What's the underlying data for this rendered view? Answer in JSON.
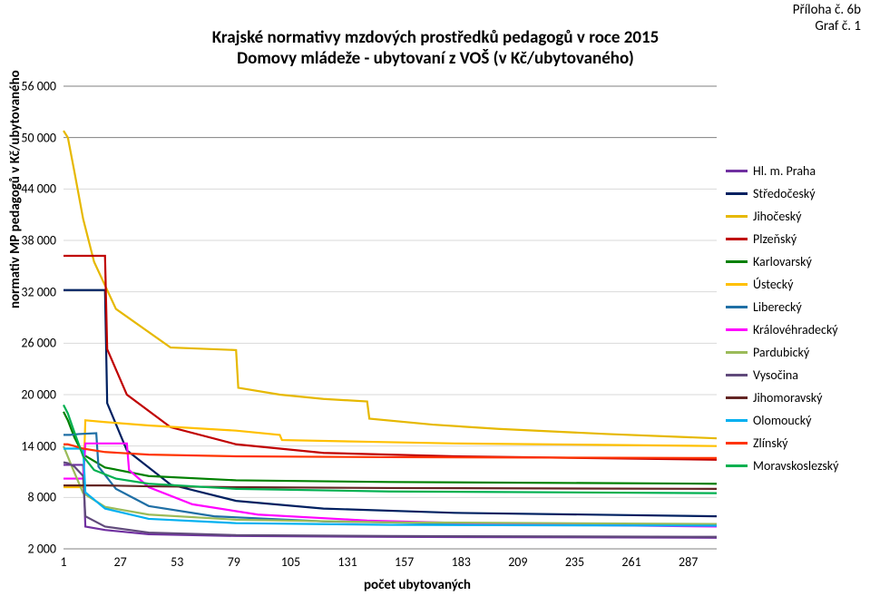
{
  "header": {
    "line1": "Příloha č. 6b",
    "line2": "Graf č. 1"
  },
  "title": {
    "line1": "Krajské normativy mzdových prostředků pedagogů v roce 2015",
    "line2": "Domovy mládeže - ubytovaní z VOŠ (v Kč/ubytovaného)"
  },
  "axes": {
    "ylabel": "normativ MP pedagogů v Kč/ubytovaného",
    "xlabel": "počet ubytovaných",
    "ymin": 2000,
    "ymax": 56000,
    "yticks": [
      56000,
      50000,
      44000,
      38000,
      32000,
      26000,
      20000,
      14000,
      8000,
      2000
    ],
    "ytick_labels": [
      "56 000",
      "50 000",
      "44 000",
      "38 000",
      "32 000",
      "26 000",
      "20 000",
      "14 000",
      "8 000",
      "2 000"
    ],
    "wide_grid": [
      56000,
      50000,
      2000
    ],
    "xmin": 1,
    "xmax": 300,
    "xticks": [
      1,
      27,
      53,
      79,
      105,
      131,
      157,
      183,
      209,
      235,
      261,
      287
    ],
    "xtick_labels": [
      "1",
      "27",
      "53",
      "79",
      "105",
      "131",
      "157",
      "183",
      "209",
      "235",
      "261",
      "287"
    ],
    "grid_color": "#d9d9d9",
    "wide_grid_color": "#808080",
    "background": "#ffffff",
    "label_fontsize": 15,
    "tick_fontsize": 14
  },
  "legend": [
    {
      "label": "Hl. m. Praha",
      "color": "#7030a0"
    },
    {
      "label": "Středočeský",
      "color": "#002060"
    },
    {
      "label": "Jihočeský",
      "color": "#e6b800"
    },
    {
      "label": "Plzeňský",
      "color": "#c00000"
    },
    {
      "label": "Karlovarský",
      "color": "#008000"
    },
    {
      "label": "Ústecký",
      "color": "#ffc000"
    },
    {
      "label": "Liberecký",
      "color": "#1f6fa5"
    },
    {
      "label": "Královéhradecký",
      "color": "#ff00ff"
    },
    {
      "label": "Pardubický",
      "color": "#9bbb59"
    },
    {
      "label": "Vysočina",
      "color": "#604a7b"
    },
    {
      "label": "Jihomoravský",
      "color": "#632523"
    },
    {
      "label": "Olomoucký",
      "color": "#00b0f0"
    },
    {
      "label": "Zlínský",
      "color": "#ff3300"
    },
    {
      "label": "Moravskoslezský",
      "color": "#00b050"
    }
  ],
  "series": [
    {
      "label": "Hl. m. Praha",
      "color": "#7030a0",
      "pts": [
        [
          1,
          11800
        ],
        [
          3,
          11800
        ],
        [
          10,
          11800
        ],
        [
          11,
          4600
        ],
        [
          20,
          4200
        ],
        [
          40,
          3700
        ],
        [
          80,
          3500
        ],
        [
          150,
          3400
        ],
        [
          300,
          3300
        ]
      ]
    },
    {
      "label": "Středočeský",
      "color": "#002060",
      "pts": [
        [
          1,
          32200
        ],
        [
          20,
          32200
        ],
        [
          21,
          19000
        ],
        [
          30,
          13500
        ],
        [
          50,
          9500
        ],
        [
          80,
          7600
        ],
        [
          120,
          6700
        ],
        [
          180,
          6200
        ],
        [
          300,
          5800
        ]
      ]
    },
    {
      "label": "Jihočeský",
      "color": "#e6b800",
      "pts": [
        [
          1,
          50800
        ],
        [
          3,
          50000
        ],
        [
          6,
          46000
        ],
        [
          10,
          40500
        ],
        [
          15,
          35500
        ],
        [
          25,
          30000
        ],
        [
          50,
          25500
        ],
        [
          80,
          25200
        ],
        [
          81,
          20800
        ],
        [
          100,
          20000
        ],
        [
          120,
          19500
        ],
        [
          140,
          19200
        ],
        [
          141,
          17200
        ],
        [
          170,
          16500
        ],
        [
          200,
          16000
        ],
        [
          250,
          15400
        ],
        [
          300,
          14900
        ]
      ]
    },
    {
      "label": "Plzeňský",
      "color": "#c00000",
      "pts": [
        [
          1,
          36200
        ],
        [
          20,
          36200
        ],
        [
          21,
          25300
        ],
        [
          30,
          20000
        ],
        [
          50,
          16200
        ],
        [
          80,
          14200
        ],
        [
          120,
          13200
        ],
        [
          180,
          12800
        ],
        [
          300,
          12400
        ]
      ]
    },
    {
      "label": "Karlovarský",
      "color": "#008000",
      "pts": [
        [
          1,
          18000
        ],
        [
          3,
          17000
        ],
        [
          6,
          15000
        ],
        [
          10,
          13000
        ],
        [
          20,
          11500
        ],
        [
          40,
          10500
        ],
        [
          80,
          10000
        ],
        [
          150,
          9800
        ],
        [
          300,
          9600
        ]
      ]
    },
    {
      "label": "Ústecký",
      "color": "#ffc000",
      "pts": [
        [
          1,
          9200
        ],
        [
          3,
          9200
        ],
        [
          10,
          9200
        ],
        [
          11,
          17000
        ],
        [
          20,
          16800
        ],
        [
          40,
          16400
        ],
        [
          80,
          15800
        ],
        [
          100,
          15300
        ],
        [
          101,
          14700
        ],
        [
          140,
          14500
        ],
        [
          180,
          14300
        ],
        [
          300,
          14000
        ]
      ]
    },
    {
      "label": "Liberecký",
      "color": "#1f6fa5",
      "pts": [
        [
          1,
          15300
        ],
        [
          4,
          15300
        ],
        [
          8,
          15400
        ],
        [
          16,
          15500
        ],
        [
          17,
          11600
        ],
        [
          25,
          9000
        ],
        [
          40,
          7000
        ],
        [
          70,
          5800
        ],
        [
          120,
          5200
        ],
        [
          200,
          4900
        ],
        [
          300,
          4700
        ]
      ]
    },
    {
      "label": "Královéhradecký",
      "color": "#ff00ff",
      "pts": [
        [
          1,
          10200
        ],
        [
          3,
          10200
        ],
        [
          6,
          10200
        ],
        [
          10,
          10200
        ],
        [
          11,
          14300
        ],
        [
          20,
          14300
        ],
        [
          30,
          14300
        ],
        [
          31,
          11200
        ],
        [
          40,
          9200
        ],
        [
          60,
          7200
        ],
        [
          90,
          6000
        ],
        [
          140,
          5300
        ],
        [
          200,
          4900
        ],
        [
          300,
          4600
        ]
      ]
    },
    {
      "label": "Pardubický",
      "color": "#9bbb59",
      "pts": [
        [
          1,
          14000
        ],
        [
          5,
          11500
        ],
        [
          10,
          8500
        ],
        [
          20,
          6900
        ],
        [
          40,
          6000
        ],
        [
          80,
          5400
        ],
        [
          150,
          5100
        ],
        [
          300,
          4900
        ]
      ]
    },
    {
      "label": "Vysočina",
      "color": "#604a7b",
      "pts": [
        [
          1,
          12100
        ],
        [
          3,
          12000
        ],
        [
          6,
          11600
        ],
        [
          10,
          10500
        ],
        [
          11,
          5800
        ],
        [
          20,
          4600
        ],
        [
          40,
          3900
        ],
        [
          80,
          3600
        ],
        [
          150,
          3500
        ],
        [
          300,
          3400
        ]
      ]
    },
    {
      "label": "Jihomoravský",
      "color": "#632523",
      "pts": [
        [
          1,
          9400
        ],
        [
          3,
          9400
        ],
        [
          6,
          9400
        ],
        [
          10,
          9400
        ],
        [
          20,
          9400
        ],
        [
          40,
          9300
        ],
        [
          80,
          9200
        ],
        [
          150,
          9100
        ],
        [
          300,
          9000
        ]
      ]
    },
    {
      "label": "Olomoucký",
      "color": "#00b0f0",
      "pts": [
        [
          1,
          13700
        ],
        [
          3,
          13700
        ],
        [
          6,
          13700
        ],
        [
          10,
          13700
        ],
        [
          11,
          8600
        ],
        [
          20,
          6700
        ],
        [
          40,
          5500
        ],
        [
          80,
          5000
        ],
        [
          150,
          4800
        ],
        [
          300,
          4700
        ]
      ]
    },
    {
      "label": "Zlínský",
      "color": "#ff3300",
      "pts": [
        [
          1,
          14200
        ],
        [
          3,
          14200
        ],
        [
          6,
          14000
        ],
        [
          10,
          13700
        ],
        [
          20,
          13300
        ],
        [
          40,
          13000
        ],
        [
          80,
          12800
        ],
        [
          150,
          12700
        ],
        [
          300,
          12600
        ]
      ]
    },
    {
      "label": "Moravskoslezský",
      "color": "#00b050",
      "pts": [
        [
          1,
          18800
        ],
        [
          3,
          17800
        ],
        [
          6,
          15600
        ],
        [
          10,
          12800
        ],
        [
          15,
          11200
        ],
        [
          25,
          10200
        ],
        [
          40,
          9600
        ],
        [
          80,
          9000
        ],
        [
          150,
          8700
        ],
        [
          300,
          8500
        ]
      ]
    }
  ]
}
